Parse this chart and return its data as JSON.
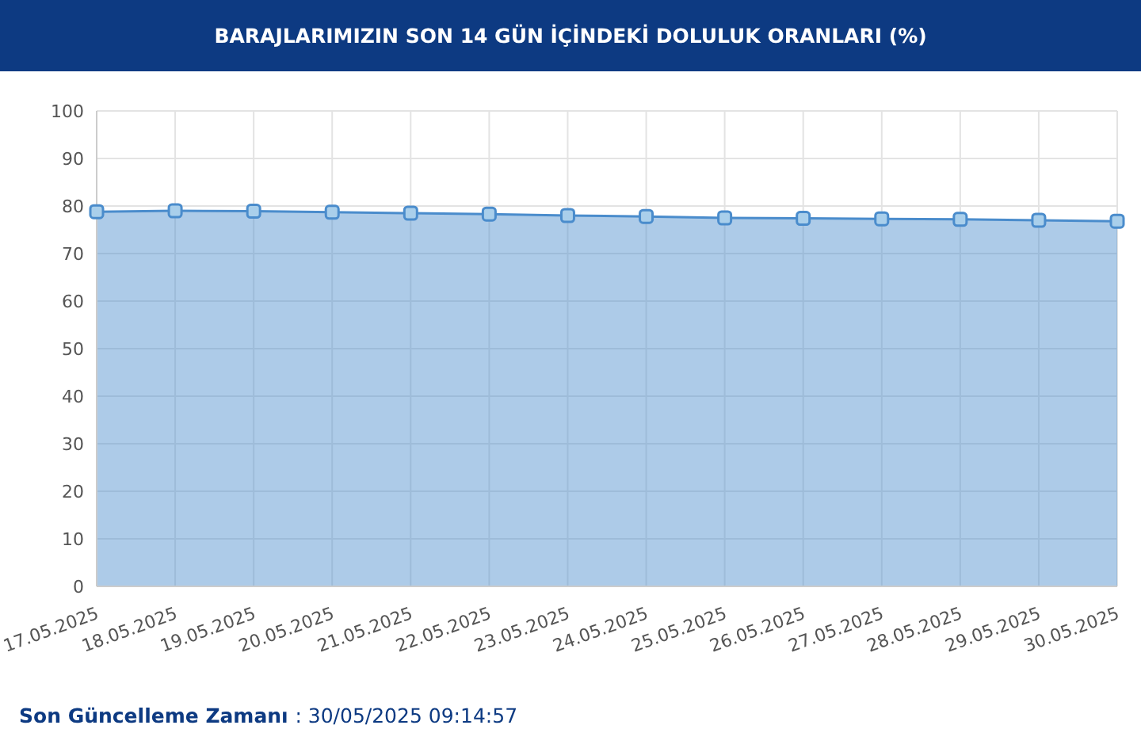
{
  "chart_data": {
    "type": "area",
    "title": "BARAJLARIMIZIN SON 14 GÜN İÇİNDEKİ DOLULUK ORANLARI (%)",
    "categories": [
      "17.05.2025",
      "18.05.2025",
      "19.05.2025",
      "20.05.2025",
      "21.05.2025",
      "22.05.2025",
      "23.05.2025",
      "24.05.2025",
      "25.05.2025",
      "26.05.2025",
      "27.05.2025",
      "28.05.2025",
      "29.05.2025",
      "30.05.2025"
    ],
    "series": [
      {
        "color": "#4a8ccc",
        "values": [
          78.8,
          79.0,
          78.9,
          78.7,
          78.5,
          78.3,
          78.0,
          77.8,
          77.5,
          77.4,
          77.3,
          77.2,
          77.0,
          76.8
        ]
      }
    ],
    "ylim": [
      0,
      100
    ],
    "yticks": [
      0,
      10,
      20,
      30,
      40,
      50,
      60,
      70,
      80,
      90,
      100
    ],
    "grid": true,
    "legend": false,
    "marker": "square",
    "annotations": [
      "Son Güncelleme Zamanı : 30/05/2025 09:14:57"
    ]
  }
}
